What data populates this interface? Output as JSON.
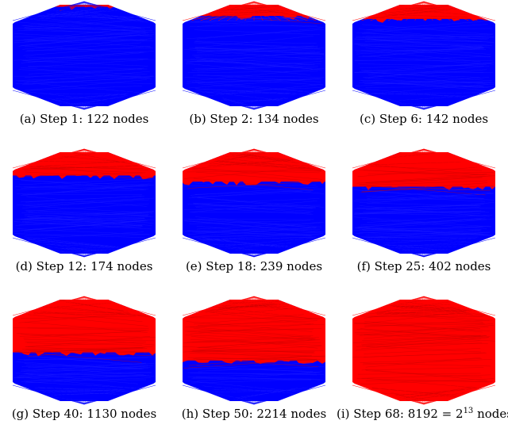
{
  "figure": {
    "panels": [
      {
        "label": "(a) Step 1:  122 nodes",
        "red_fraction": 0.02
      },
      {
        "label": "(b) Step 2:  134 nodes",
        "red_fraction": 0.11
      },
      {
        "label": "(c) Step 6:  142 nodes",
        "red_fraction": 0.14
      },
      {
        "label": "(d) Step 12:  174 nodes",
        "red_fraction": 0.23
      },
      {
        "label": "(e) Step 18:  239 nodes",
        "red_fraction": 0.29
      },
      {
        "label": "(f) Step 25:  402 nodes",
        "red_fraction": 0.34
      },
      {
        "label": "(g) Step 40:  1130 nodes",
        "red_fraction": 0.52
      },
      {
        "label": "(h) Step 50:  2214 nodes",
        "red_fraction": 0.6
      },
      {
        "label_main": "(i) Step 68:  8192 = 2",
        "label_exp": "13",
        "label_tail": " nodes",
        "red_fraction": 1.0
      }
    ],
    "colors": {
      "explored": "#ff0000",
      "unexplored": "#0000ff",
      "background": "#ffffff"
    }
  }
}
